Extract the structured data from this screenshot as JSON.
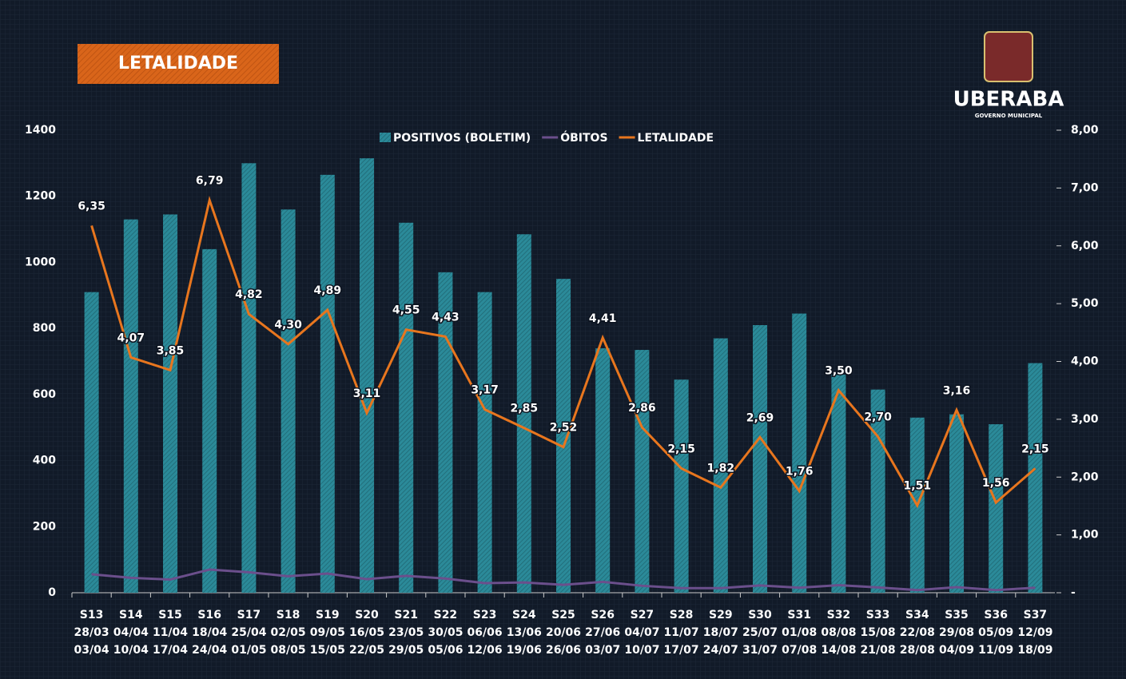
{
  "chart_data": {
    "type": "combo",
    "title": "LETALIDADE",
    "categories": [
      [
        "S13",
        "28/03",
        "03/04"
      ],
      [
        "S14",
        "04/04",
        "10/04"
      ],
      [
        "S15",
        "11/04",
        "17/04"
      ],
      [
        "S16",
        "18/04",
        "24/04"
      ],
      [
        "S17",
        "25/04",
        "01/05"
      ],
      [
        "S18",
        "02/05",
        "08/05"
      ],
      [
        "S19",
        "09/05",
        "15/05"
      ],
      [
        "S20",
        "16/05",
        "22/05"
      ],
      [
        "S21",
        "23/05",
        "29/05"
      ],
      [
        "S22",
        "30/05",
        "05/06"
      ],
      [
        "S23",
        "06/06",
        "12/06"
      ],
      [
        "S24",
        "13/06",
        "19/06"
      ],
      [
        "S25",
        "20/06",
        "26/06"
      ],
      [
        "S26",
        "27/06",
        "03/07"
      ],
      [
        "S27",
        "04/07",
        "10/07"
      ],
      [
        "S28",
        "11/07",
        "17/07"
      ],
      [
        "S29",
        "18/07",
        "24/07"
      ],
      [
        "S30",
        "25/07",
        "31/07"
      ],
      [
        "S31",
        "01/08",
        "07/08"
      ],
      [
        "S32",
        "08/08",
        "14/08"
      ],
      [
        "S33",
        "15/08",
        "21/08"
      ],
      [
        "S34",
        "22/08",
        "28/08"
      ],
      [
        "S35",
        "29/08",
        "04/09"
      ],
      [
        "S36",
        "05/09",
        "11/09"
      ],
      [
        "S37",
        "12/09",
        "18/09"
      ]
    ],
    "series": [
      {
        "name": "POSITIVOS (BOLETIM)",
        "type": "bar",
        "color": "#2b8a99",
        "values": [
          910,
          1130,
          1145,
          1040,
          1300,
          1160,
          1265,
          1315,
          1120,
          970,
          910,
          1085,
          950,
          740,
          735,
          645,
          770,
          810,
          845,
          660,
          615,
          530,
          540,
          510,
          695
        ]
      },
      {
        "name": "ÓBITOS",
        "type": "line",
        "color": "#6b4f8c",
        "values": [
          56,
          45,
          40,
          70,
          62,
          50,
          58,
          41,
          51,
          43,
          29,
          31,
          24,
          33,
          21,
          14,
          14,
          22,
          15,
          23,
          16,
          8,
          17,
          8,
          15
        ]
      },
      {
        "name": "LETALIDADE",
        "type": "line",
        "axis": "y2",
        "color": "#e8761e",
        "values": [
          6.35,
          4.07,
          3.85,
          6.79,
          4.82,
          4.3,
          4.89,
          3.11,
          4.55,
          4.43,
          3.17,
          2.85,
          2.52,
          4.41,
          2.86,
          2.15,
          1.82,
          2.69,
          1.76,
          3.5,
          2.7,
          1.51,
          3.16,
          1.56,
          2.15
        ],
        "value_labels": [
          "6,35",
          "4,07",
          "3,85",
          "6,79",
          "4,82",
          "4,30",
          "4,89",
          "3,11",
          "4,55",
          "4,43",
          "3,17",
          "2,85",
          "2,52",
          "4,41",
          "2,86",
          "2,15",
          "1,82",
          "2,69",
          "1,76",
          "3,50",
          "2,70",
          "1,51",
          "3,16",
          "1,56",
          "2,15"
        ]
      }
    ],
    "ylim": [
      0,
      1400
    ],
    "yticks": [
      0,
      200,
      400,
      600,
      800,
      1000,
      1200,
      1400
    ],
    "y2lim": [
      0,
      8
    ],
    "y2ticks": [
      {
        "value": 0,
        "label": "-"
      },
      {
        "value": 1,
        "label": "1,00"
      },
      {
        "value": 2,
        "label": "2,00"
      },
      {
        "value": 3,
        "label": "3,00"
      },
      {
        "value": 4,
        "label": "4,00"
      },
      {
        "value": 5,
        "label": "5,00"
      },
      {
        "value": 6,
        "label": "6,00"
      },
      {
        "value": 7,
        "label": "7,00"
      },
      {
        "value": 8,
        "label": "8,00"
      }
    ],
    "legend": "top"
  },
  "logo": {
    "name": "UBERABA",
    "subtitle": "GOVERNO MUNICIPAL"
  }
}
